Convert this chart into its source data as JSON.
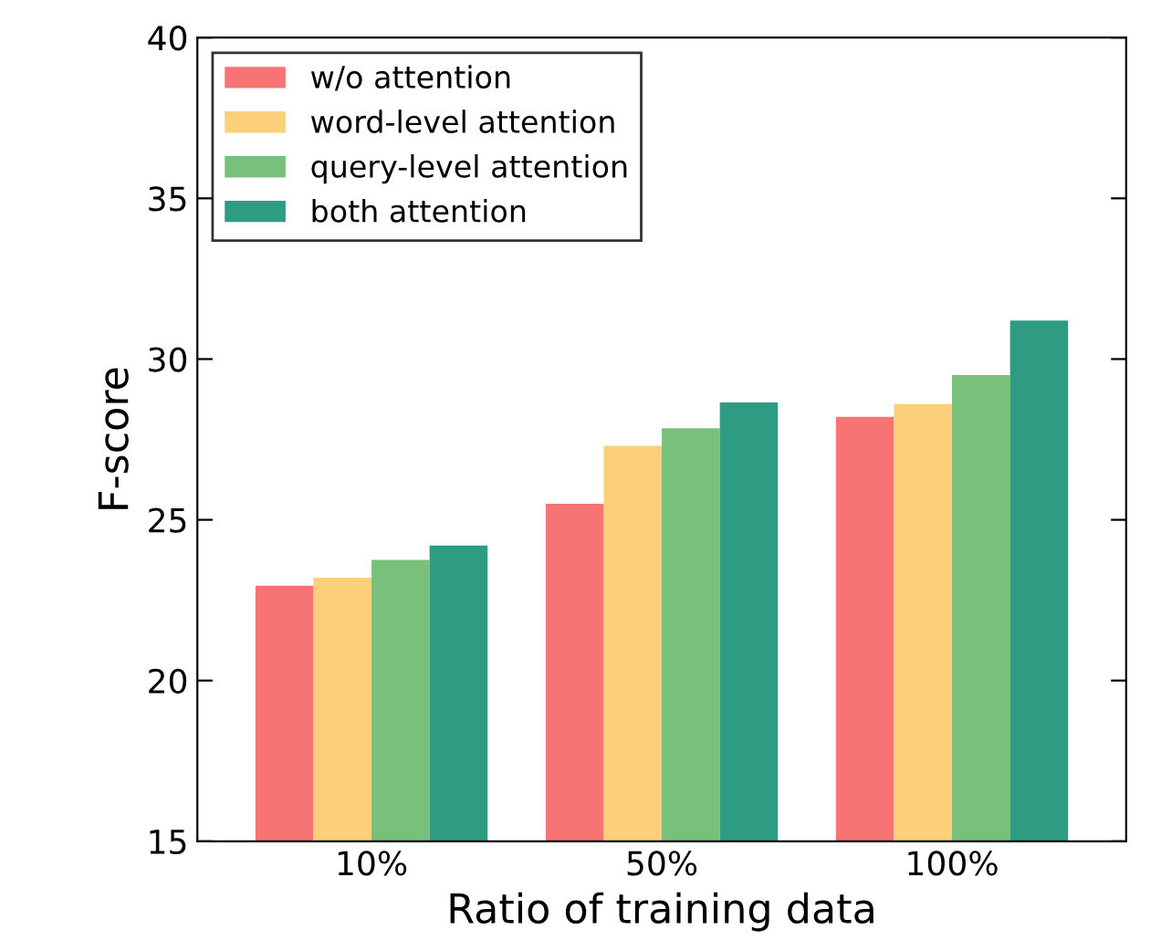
{
  "chart_data": {
    "type": "bar",
    "xlabel": "Ratio of training data",
    "ylabel": "F-score",
    "categories": [
      "10%",
      "50%",
      "100%"
    ],
    "series": [
      {
        "name": "w/o attention",
        "color": "#f87474",
        "values": [
          22.95,
          25.5,
          28.2
        ]
      },
      {
        "name": "word-level attention",
        "color": "#fccf7a",
        "values": [
          23.2,
          27.3,
          28.6
        ]
      },
      {
        "name": "query-level attention",
        "color": "#79c07a",
        "values": [
          23.75,
          27.85,
          29.5
        ]
      },
      {
        "name": "both attention",
        "color": "#2d9c82",
        "values": [
          24.2,
          28.65,
          31.2
        ]
      }
    ],
    "ylim": [
      15,
      40
    ],
    "yticks": [
      15,
      20,
      25,
      30,
      35,
      40
    ],
    "legend": "top left"
  }
}
